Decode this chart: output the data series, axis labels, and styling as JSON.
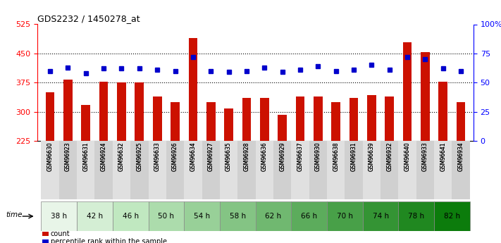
{
  "title": "GDS2232 / 1450278_at",
  "samples": [
    "GSM96630",
    "GSM96923",
    "GSM96631",
    "GSM96924",
    "GSM96632",
    "GSM96925",
    "GSM96633",
    "GSM96926",
    "GSM96634",
    "GSM96927",
    "GSM96635",
    "GSM96928",
    "GSM96636",
    "GSM96929",
    "GSM96637",
    "GSM96930",
    "GSM96638",
    "GSM96931",
    "GSM96639",
    "GSM96932",
    "GSM96640",
    "GSM96933",
    "GSM96641",
    "GSM96934"
  ],
  "counts": [
    350,
    383,
    318,
    378,
    375,
    375,
    340,
    325,
    490,
    325,
    308,
    336,
    336,
    293,
    340,
    340,
    325,
    336,
    343,
    340,
    478,
    453,
    378,
    325
  ],
  "percentiles": [
    60,
    63,
    58,
    62,
    62,
    62,
    61,
    60,
    72,
    60,
    59,
    60,
    63,
    59,
    61,
    64,
    60,
    61,
    65,
    61,
    72,
    70,
    62,
    60
  ],
  "time_labels": [
    "38 h",
    "42 h",
    "46 h",
    "50 h",
    "54 h",
    "58 h",
    "62 h",
    "66 h",
    "70 h",
    "74 h",
    "78 h",
    "82 h"
  ],
  "time_group_size": 2,
  "green_shades": [
    "#e8f5e8",
    "#d4eed4",
    "#c0e8c0",
    "#acdcac",
    "#98d098",
    "#84c484",
    "#70b870",
    "#5cac5c",
    "#48a048",
    "#349434",
    "#208820",
    "#0c7c0c"
  ],
  "ylim_left": [
    225,
    525
  ],
  "ylim_right": [
    0,
    100
  ],
  "yticks_left": [
    225,
    300,
    375,
    450,
    525
  ],
  "yticks_right": [
    0,
    25,
    50,
    75,
    100
  ],
  "hgrid_vals": [
    300,
    375,
    450
  ],
  "bar_color": "#cc1100",
  "dot_color": "#0000cc",
  "bar_width": 0.5,
  "dot_size": 5,
  "legend_items": [
    {
      "color": "#cc1100",
      "label": "count"
    },
    {
      "color": "#0000cc",
      "label": "percentile rank within the sample"
    }
  ]
}
